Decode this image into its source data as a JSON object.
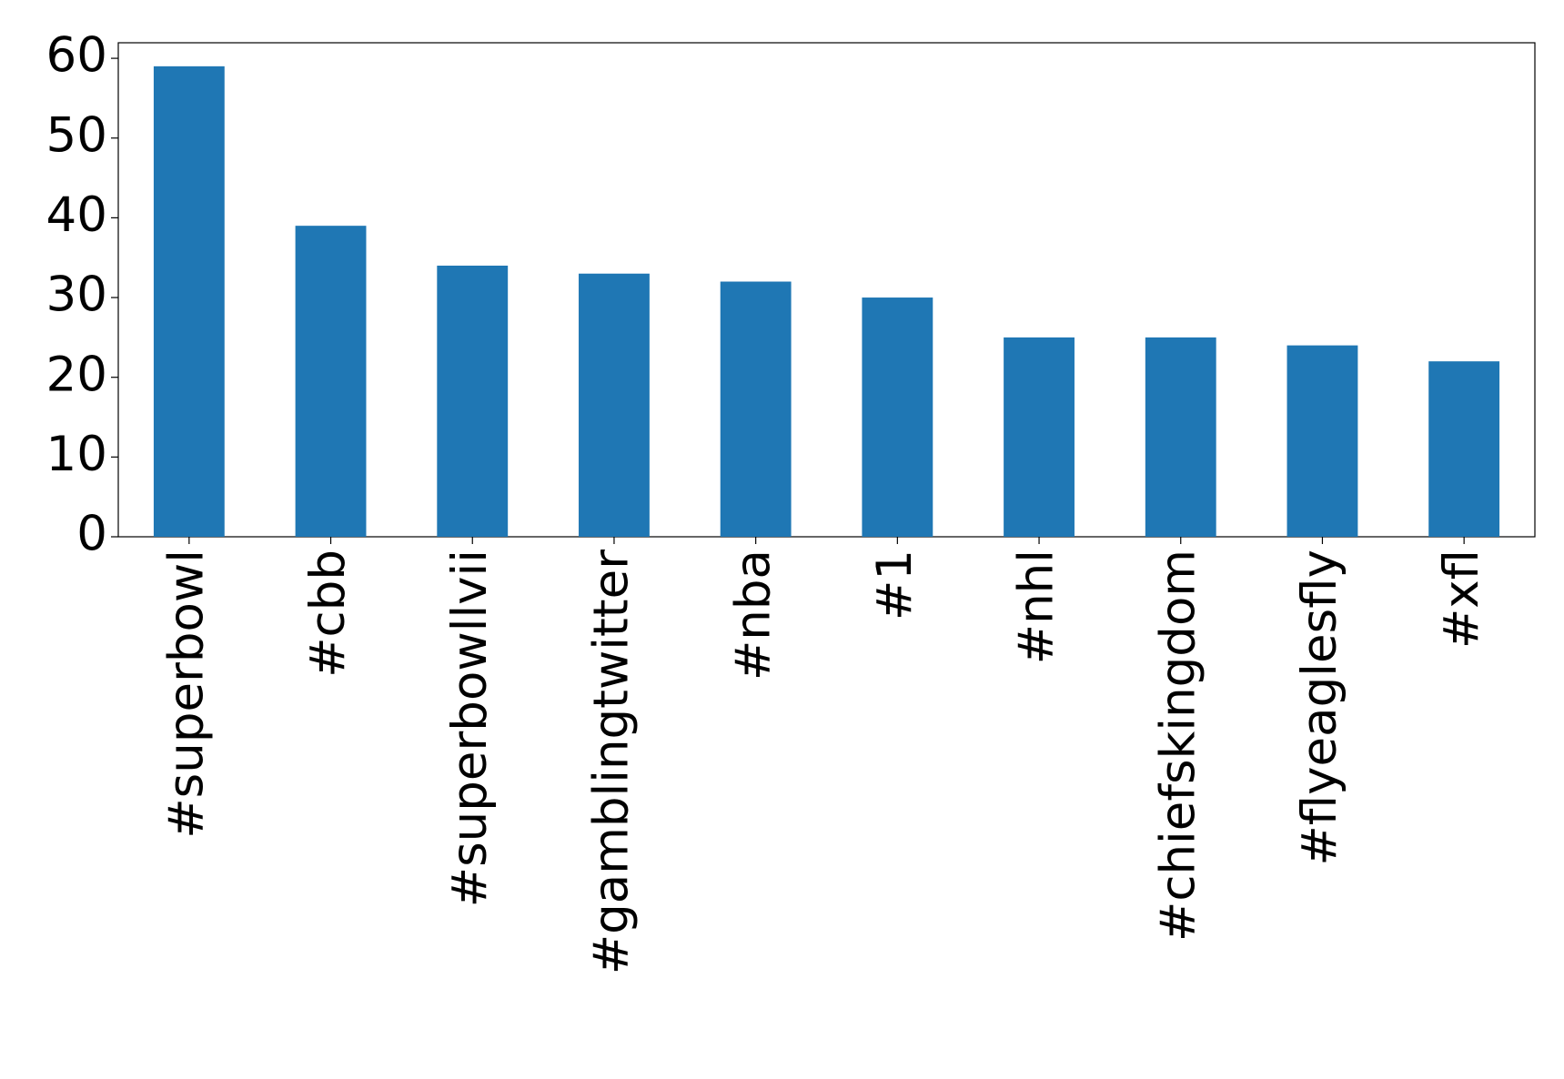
{
  "chart_data": {
    "type": "bar",
    "categories": [
      "#superbowl",
      "#cbb",
      "#superbowllvii",
      "#gamblingtwitter",
      "#nba",
      "#1",
      "#nhl",
      "#chiefskingdom",
      "#flyeaglesfly",
      "#xfl"
    ],
    "values": [
      59,
      39,
      34,
      33,
      32,
      30,
      25,
      25,
      24,
      22
    ],
    "color": "#1f77b4",
    "ylim": [
      0,
      61.95
    ],
    "yticks": [
      0,
      10,
      20,
      30,
      40,
      50,
      60
    ],
    "grid": false
  }
}
